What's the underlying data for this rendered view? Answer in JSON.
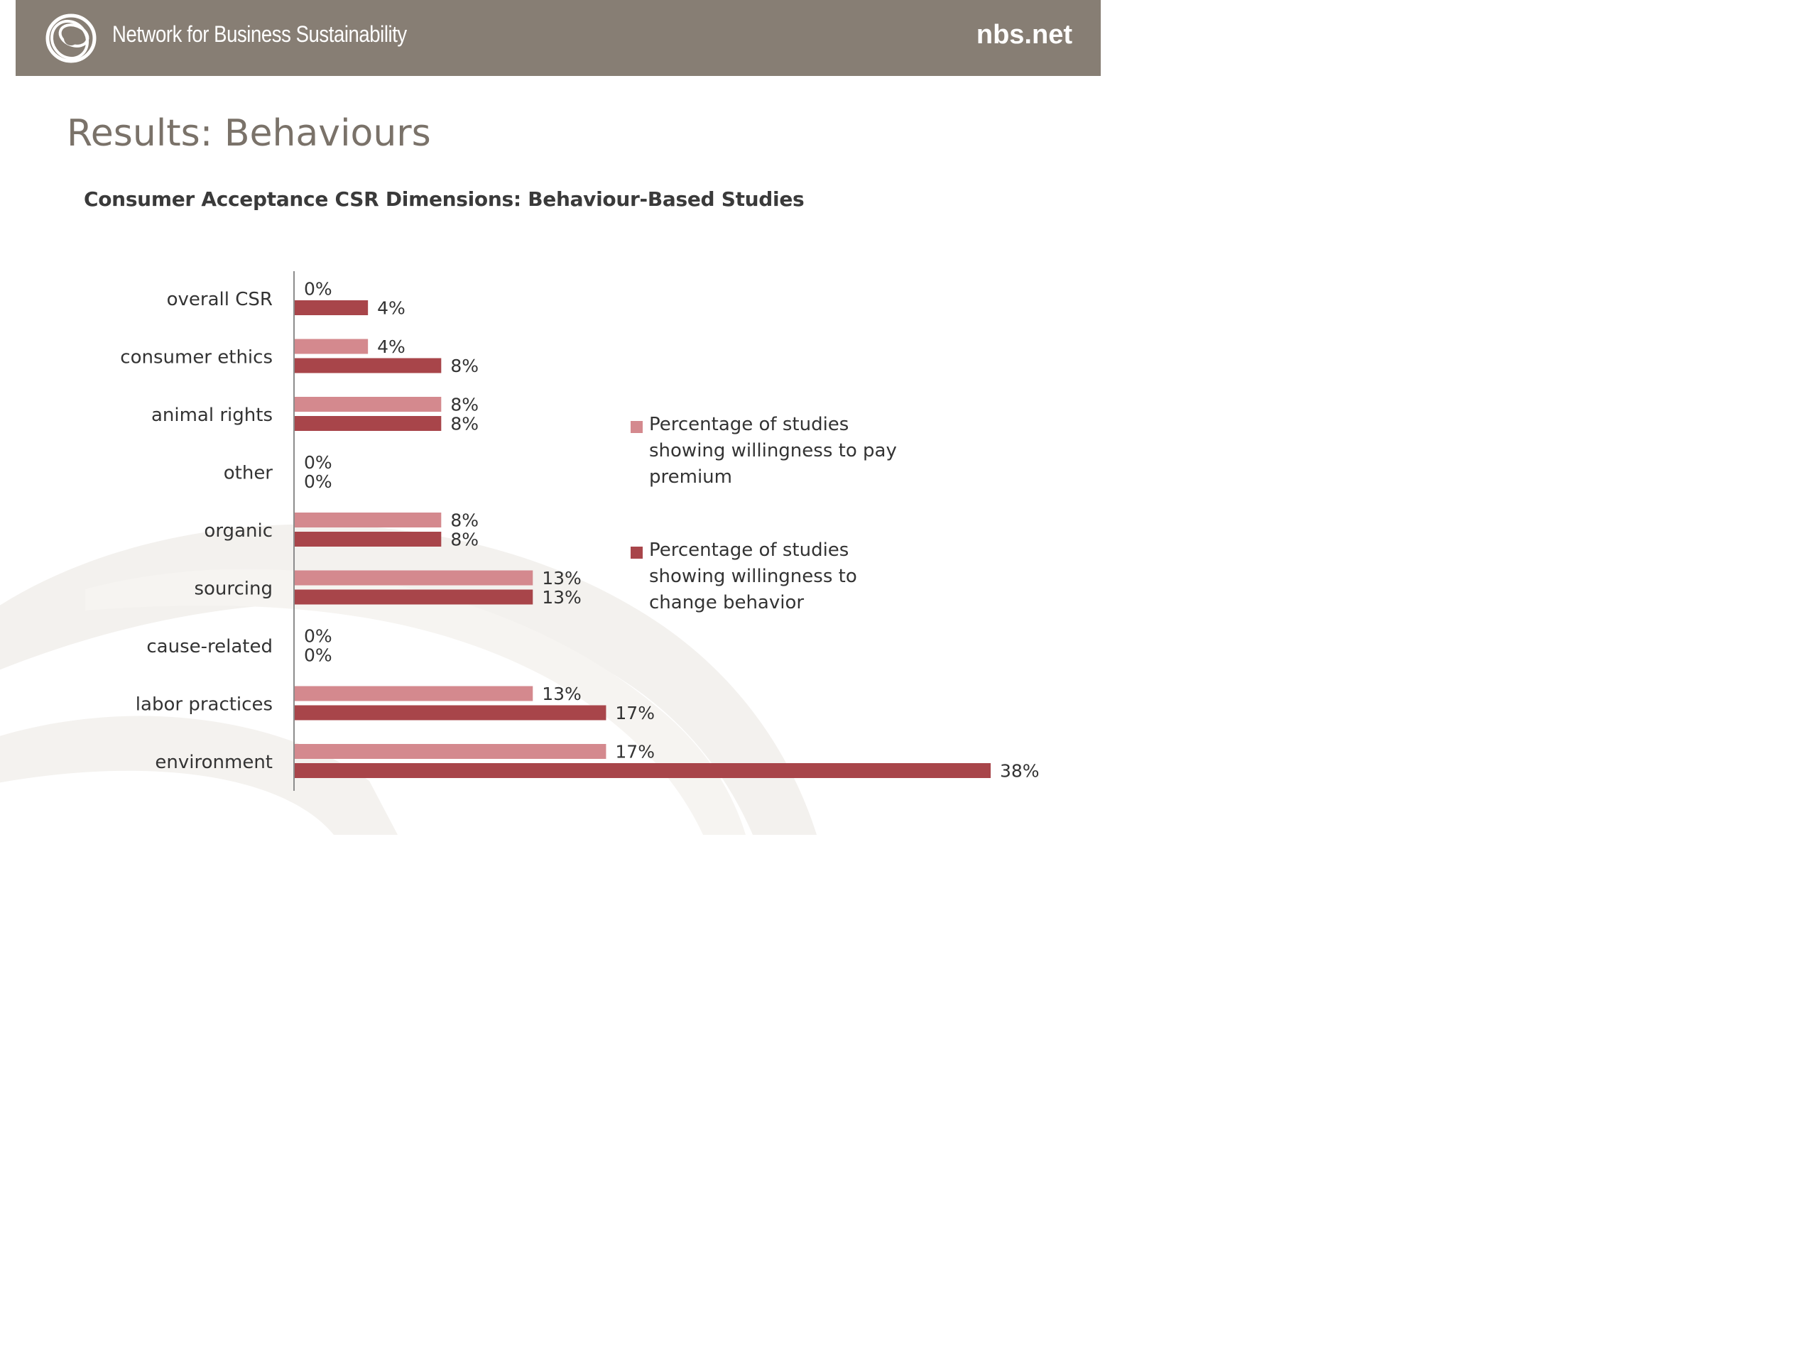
{
  "header": {
    "brand_name": "Network for Business Sustainability",
    "url": "nbs.net",
    "logo_icon": "nbs-ring-logo-icon",
    "background_color": "#877e74"
  },
  "slide": {
    "title": "Results: Behaviours"
  },
  "chart_data": {
    "type": "bar",
    "orientation": "horizontal",
    "title": "Consumer Acceptance CSR Dimensions: Behaviour-Based Studies",
    "categories": [
      "overall CSR",
      "consumer ethics",
      "animal rights",
      "other",
      "organic",
      "sourcing",
      "cause-related",
      "labor practices",
      "environment"
    ],
    "series": [
      {
        "name": "Percentage of studies showing willingness to pay premium",
        "color": "#d4898e",
        "values": [
          0,
          4,
          8,
          0,
          8,
          13,
          0,
          13,
          17
        ],
        "labels": [
          "0%",
          "4%",
          "8%",
          "0%",
          "8%",
          "13%",
          "0%",
          "13%",
          "17%"
        ]
      },
      {
        "name": "Percentage of studies showing willingness to change behavior",
        "color": "#a8454a",
        "values": [
          4,
          8,
          8,
          0,
          8,
          13,
          0,
          17,
          38
        ],
        "labels": [
          "4%",
          "8%",
          "8%",
          "0%",
          "8%",
          "13%",
          "0%",
          "17%",
          "38%"
        ]
      }
    ],
    "value_unit": "%",
    "xlim": [
      0,
      38
    ],
    "grid": false,
    "legend_position": "right"
  }
}
